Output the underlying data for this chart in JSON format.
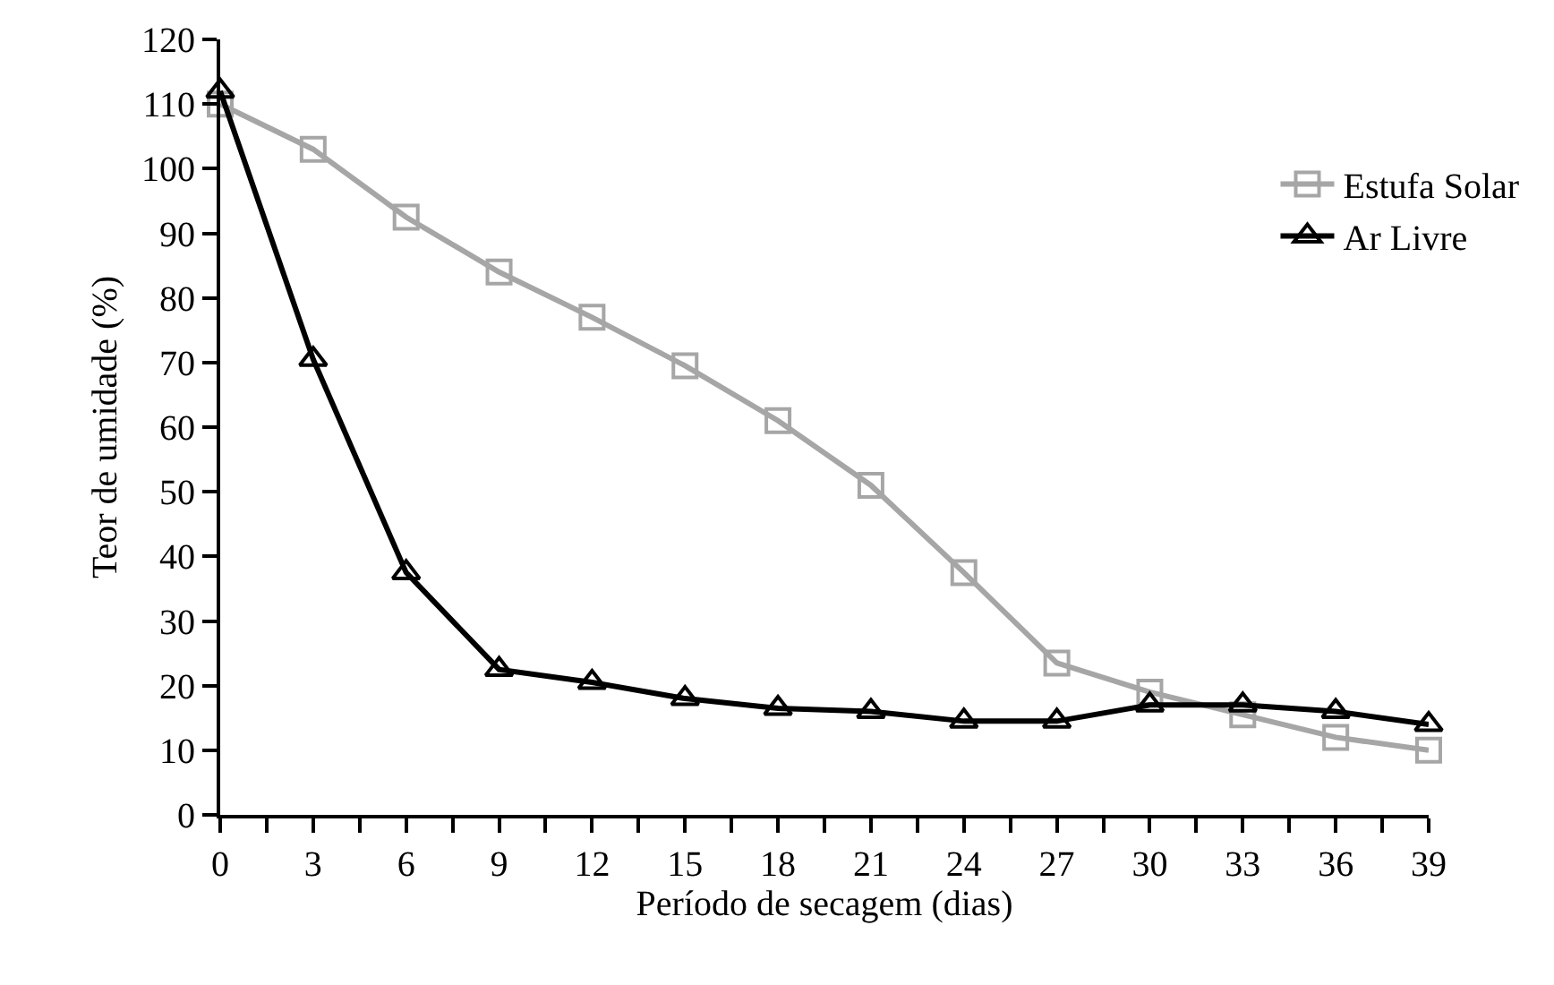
{
  "chart_data": {
    "type": "line",
    "xlabel": "Período de secagem (dias)",
    "ylabel": "Teor de umidade (%)",
    "x": [
      0,
      3,
      6,
      9,
      12,
      15,
      18,
      21,
      24,
      27,
      30,
      33,
      36,
      39
    ],
    "series": [
      {
        "name": "Estufa Solar",
        "color": "#a6a6a6",
        "marker": "square",
        "values": [
          110,
          103,
          92.5,
          84,
          77,
          69.5,
          61,
          51,
          37.5,
          23.5,
          19,
          15.5,
          12,
          10
        ]
      },
      {
        "name": "Ar Livre",
        "color": "#000000",
        "marker": "triangle",
        "values": [
          112,
          70.5,
          37.5,
          22.5,
          20.5,
          18,
          16.5,
          16,
          14.5,
          14.5,
          17,
          17,
          16,
          14
        ]
      }
    ],
    "xlim": [
      0,
      39
    ],
    "xticks": [
      0,
      {
        "value": 1.5,
        "label": null
      },
      3,
      {
        "value": 4.5,
        "label": null
      },
      6,
      {
        "value": 7.5,
        "label": null
      },
      9,
      {
        "value": 10.5,
        "label": null
      },
      12,
      {
        "value": 13.5,
        "label": null
      },
      15,
      {
        "value": 16.5,
        "label": null
      },
      18,
      {
        "value": 19.5,
        "label": null
      },
      21,
      {
        "value": 22.5,
        "label": null
      },
      24,
      {
        "value": 25.5,
        "label": null
      },
      27,
      {
        "value": 28.5,
        "label": null
      },
      30,
      {
        "value": 31.5,
        "label": null
      },
      33,
      {
        "value": 34.5,
        "label": null
      },
      36,
      {
        "value": 37.5,
        "label": null
      },
      39
    ],
    "ylim": [
      0,
      120
    ],
    "yticks": [
      0,
      10,
      20,
      30,
      40,
      50,
      60,
      70,
      80,
      90,
      100,
      110,
      120
    ],
    "legend": "right",
    "line_style": "solid"
  }
}
